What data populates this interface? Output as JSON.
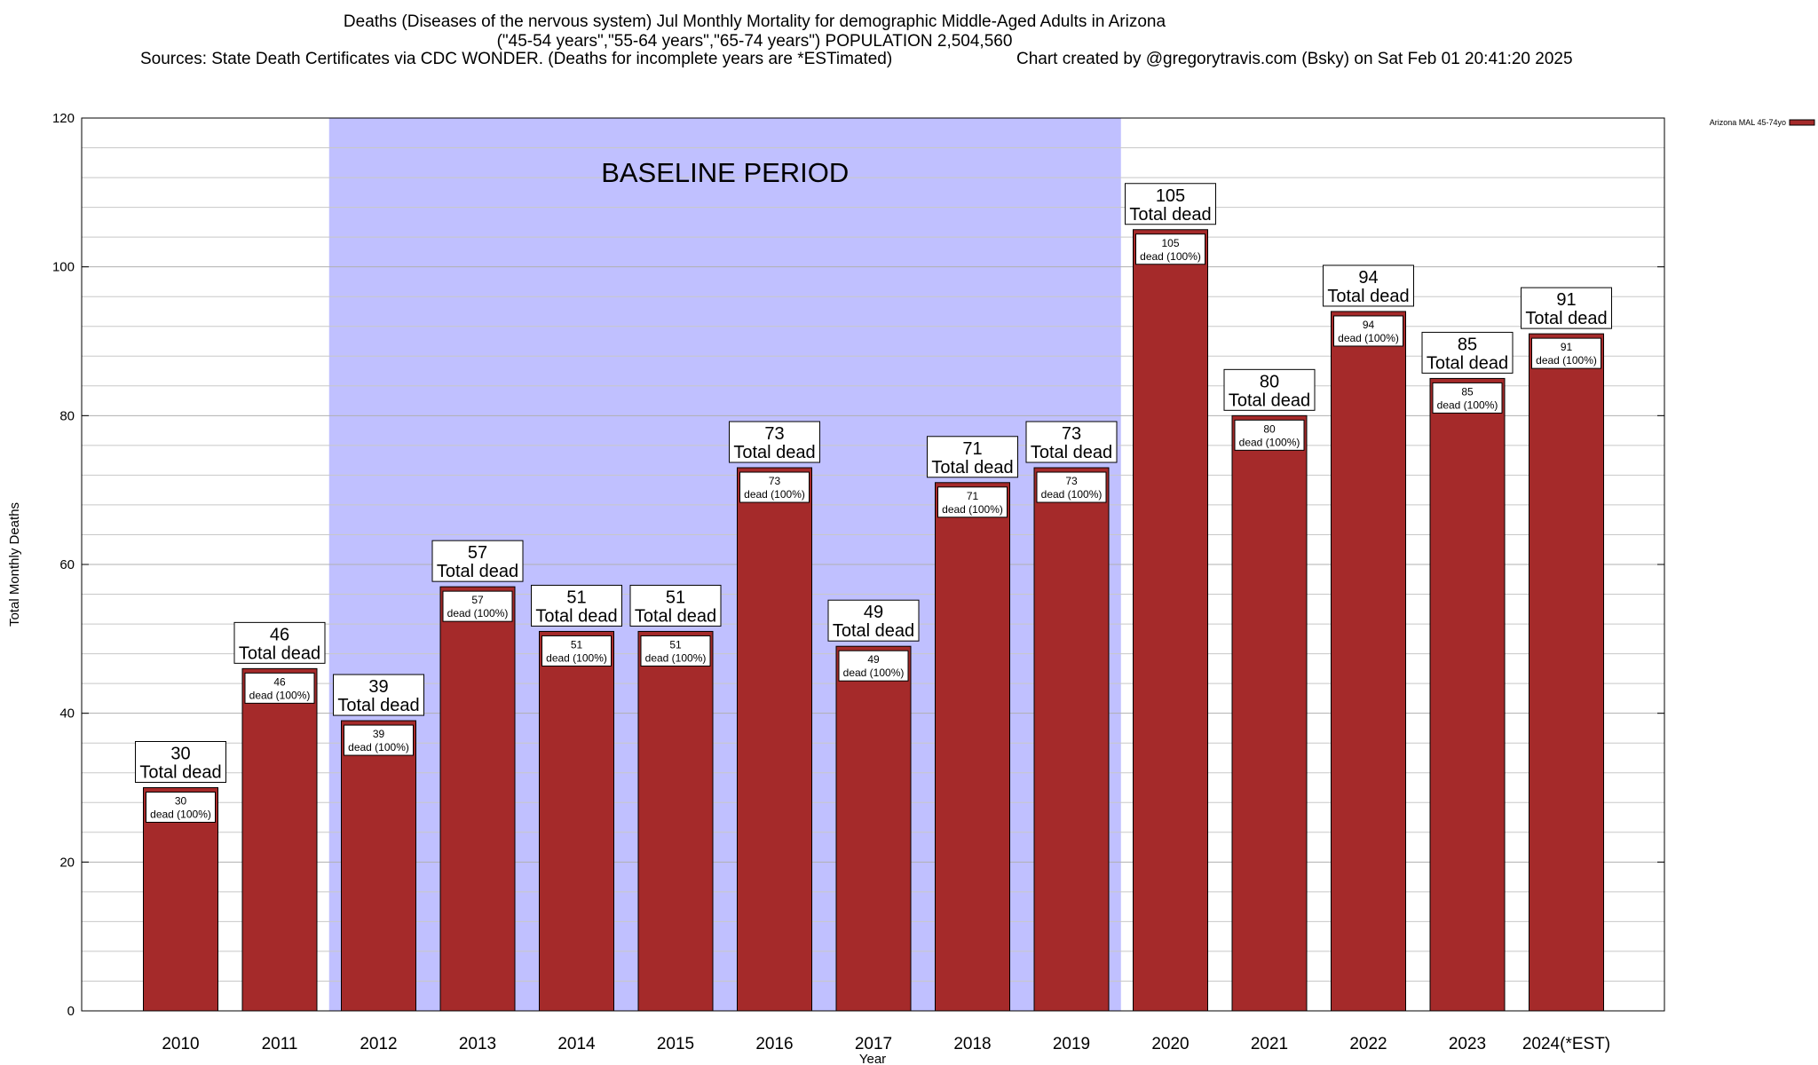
{
  "title": {
    "line1": "Deaths (Diseases of the nervous system) Jul Monthly Mortality for demographic Middle-Aged Adults in Arizona",
    "line2": "(\"45-54 years\",\"55-64 years\",\"65-74 years\") POPULATION 2,504,560",
    "line3": "Sources: State Death Certificates via CDC WONDER. (Deaths for incomplete years are *ESTimated)",
    "credit": "Chart created by @gregorytravis.com (Bsky) on Sat Feb 01 20:41:20 2025"
  },
  "chart_data": {
    "type": "bar",
    "categories": [
      "2010",
      "2011",
      "2012",
      "2013",
      "2014",
      "2015",
      "2016",
      "2017",
      "2018",
      "2019",
      "2020",
      "2021",
      "2022",
      "2023",
      "2024(*EST)"
    ],
    "series": [
      {
        "name": "Arizona MAL 45-74yo",
        "values": [
          30,
          46,
          39,
          57,
          51,
          51,
          73,
          49,
          71,
          73,
          105,
          80,
          94,
          85,
          91
        ],
        "color": "#a52a2a"
      }
    ],
    "xlabel": "Year",
    "ylabel": "Total Monthly Deaths",
    "ylim": [
      0,
      120
    ],
    "yticks": [
      0,
      20,
      40,
      60,
      80,
      100,
      120
    ],
    "minor_grid_step": 4,
    "grid": true,
    "legend_position": "top-right",
    "annotation_total_suffix": "Total dead",
    "annotation_share_label": "dead (100%)",
    "baseline": {
      "label": "BASELINE PERIOD",
      "start_category": "2012",
      "end_category": "2019",
      "color": "#c0c0ff"
    }
  }
}
